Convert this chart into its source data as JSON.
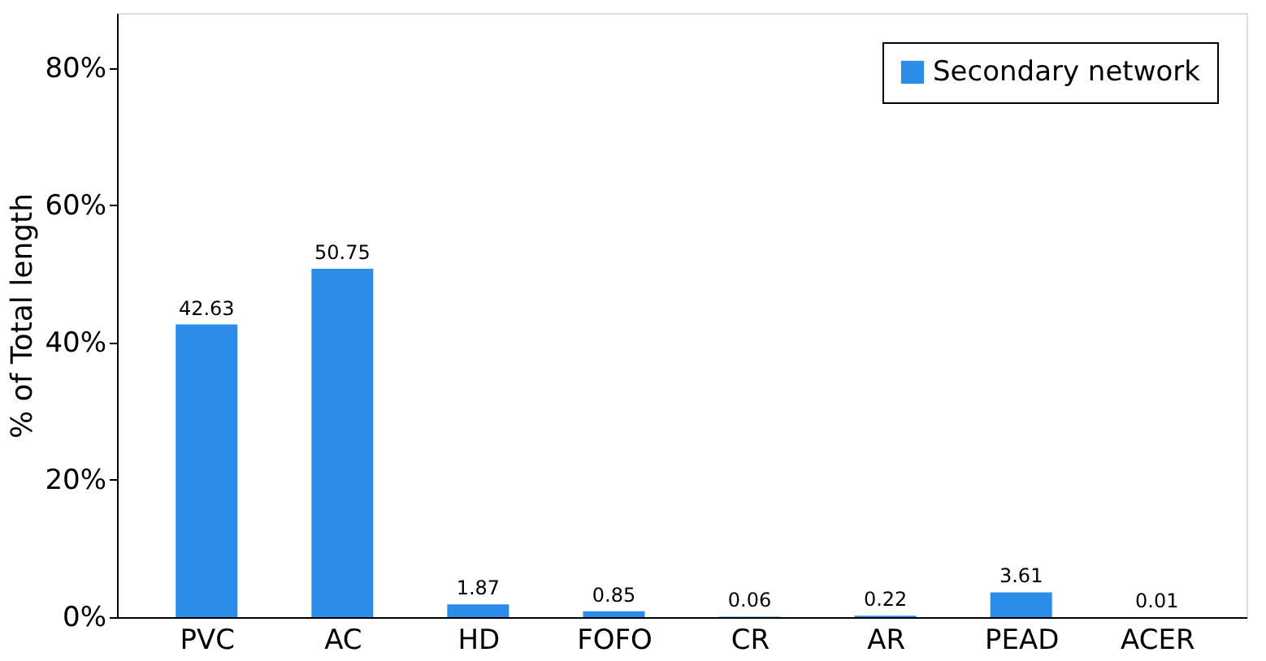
{
  "chart_data": {
    "type": "bar",
    "ylabel": "% of Total length",
    "categories": [
      "PVC",
      "AC",
      "HD",
      "FOFO",
      "CR",
      "AR",
      "PEAD",
      "ACER"
    ],
    "series": [
      {
        "name": "Secondary network",
        "color": "#2b8de8",
        "values": [
          42.63,
          50.75,
          1.87,
          0.85,
          0.06,
          0.22,
          3.61,
          0.01
        ]
      }
    ],
    "ylim": [
      0,
      88
    ],
    "yticks": [
      {
        "value": 0,
        "label": "0%"
      },
      {
        "value": 20,
        "label": "20%"
      },
      {
        "value": 40,
        "label": "40%"
      },
      {
        "value": 60,
        "label": "60%"
      },
      {
        "value": 80,
        "label": "80%"
      }
    ],
    "data_labels": true,
    "grid": false,
    "legend": "top right"
  }
}
